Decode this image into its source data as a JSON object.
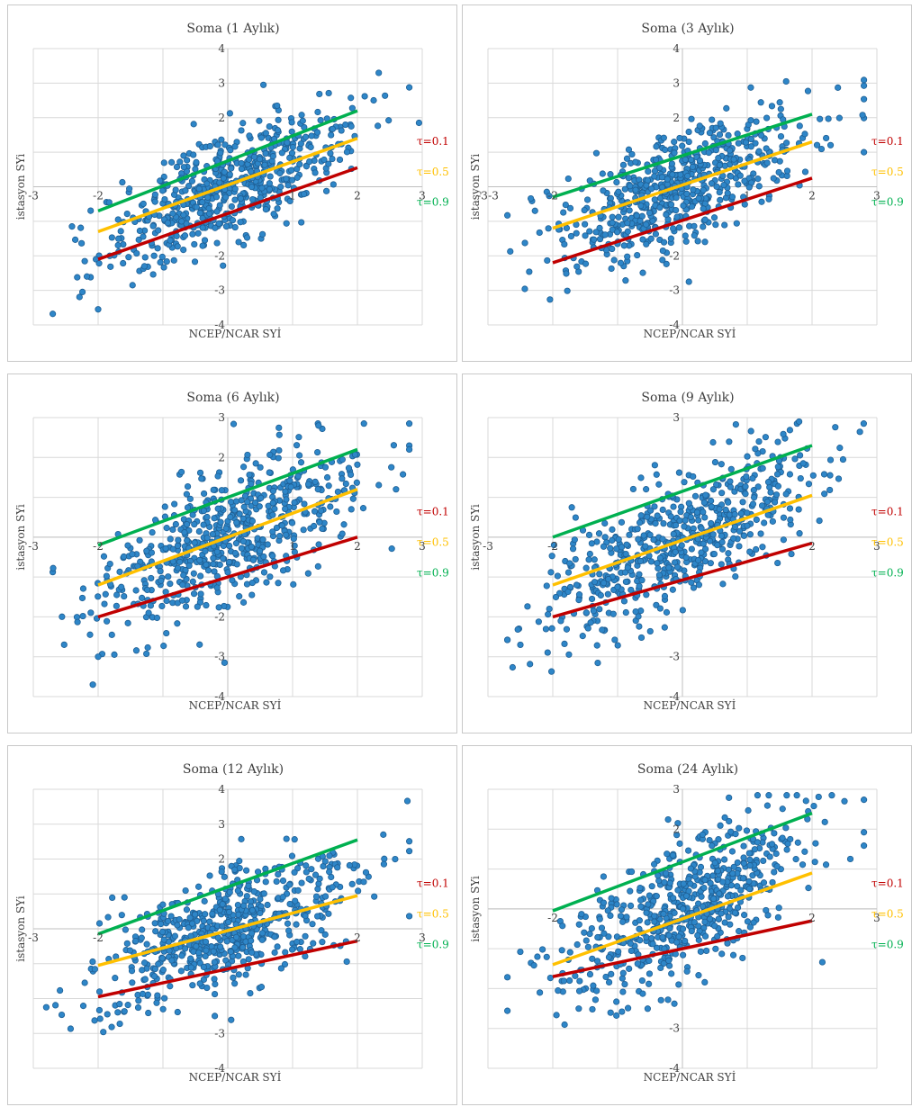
{
  "colors": {
    "points": "#2e86c8",
    "point_edge": "#1f5f94",
    "tau_0_1": "#c00000",
    "tau_0_5": "#ffc000",
    "tau_0_9": "#00b050",
    "grid": "#d9d9d9",
    "axis": "#bfbfbf",
    "text": "#404040"
  },
  "chart_data": [
    {
      "type": "scatter",
      "title": "Soma (1 Aylık)",
      "xlabel": "NCEP/NCAR SYİ",
      "ylabel": "istasyon SYi",
      "xlim": [
        -3,
        3
      ],
      "ylim": [
        -4,
        4
      ],
      "x_ticks": [
        "-3",
        "-2",
        "1",
        "2",
        "3"
      ],
      "y_ticks": [
        "4",
        "3",
        "2",
        "-2",
        "-3",
        "-4"
      ],
      "point_count": 600,
      "x_spread": 0.95,
      "slope": 0.85,
      "noise": 0.75,
      "extra_points": [
        {
          "x": 2.95,
          "y": 1.85
        },
        {
          "x": -2.0,
          "y": -3.55
        },
        {
          "x": 0.55,
          "y": 2.95
        }
      ],
      "lines": [
        {
          "name": "τ=0.1",
          "x": [
            -2,
            2
          ],
          "y": [
            -2.1,
            0.55
          ]
        },
        {
          "name": "τ=0.5",
          "x": [
            -2,
            2
          ],
          "y": [
            -1.3,
            1.4
          ]
        },
        {
          "name": "τ=0.9",
          "x": [
            -2,
            2
          ],
          "y": [
            -0.7,
            2.2
          ]
        }
      ]
    },
    {
      "type": "scatter",
      "title": "Soma (3 Aylık)",
      "xlabel": "NCEP/NCAR SYİ",
      "ylabel": "istasyon SYi",
      "xlim": [
        -3,
        3
      ],
      "ylim": [
        -4,
        4
      ],
      "x_ticks": [
        "-3",
        "-3",
        "-2",
        "1",
        "2",
        "3"
      ],
      "y_ticks": [
        "4",
        "3",
        "2",
        "-2",
        "-3",
        "-4"
      ],
      "point_count": 600,
      "x_spread": 1.0,
      "slope": 0.72,
      "noise": 0.8,
      "extra_points": [
        {
          "x": 1.6,
          "y": 3.05
        },
        {
          "x": 0.1,
          "y": -2.75
        }
      ],
      "lines": [
        {
          "name": "τ=0.1",
          "x": [
            -2,
            2
          ],
          "y": [
            -2.2,
            0.25
          ]
        },
        {
          "name": "τ=0.5",
          "x": [
            -2,
            2
          ],
          "y": [
            -1.2,
            1.3
          ]
        },
        {
          "name": "τ=0.9",
          "x": [
            -2,
            2
          ],
          "y": [
            -0.3,
            2.1
          ]
        }
      ]
    },
    {
      "type": "scatter",
      "title": "Soma (6 Aylık)",
      "xlabel": "NCEP/NCAR SYİ",
      "ylabel": "istasyon SYi",
      "xlim": [
        -3,
        3
      ],
      "ylim": [
        -4,
        3
      ],
      "x_ticks": [
        "-3",
        "-2",
        "1",
        "2",
        "3"
      ],
      "y_ticks": [
        "3",
        "2",
        "-2",
        "-3",
        "-4"
      ],
      "point_count": 600,
      "x_spread": 1.0,
      "slope": 0.75,
      "noise": 0.85,
      "extra_points": [
        {
          "x": -0.05,
          "y": -3.15
        },
        {
          "x": -2.0,
          "y": -3.0
        },
        {
          "x": 1.4,
          "y": 2.8
        }
      ],
      "lines": [
        {
          "name": "τ=0.1",
          "x": [
            -2,
            2
          ],
          "y": [
            -2.0,
            0.0
          ]
        },
        {
          "name": "τ=0.5",
          "x": [
            -2,
            2
          ],
          "y": [
            -1.2,
            1.2
          ]
        },
        {
          "name": "τ=0.9",
          "x": [
            -2,
            2
          ],
          "y": [
            -0.2,
            2.2
          ]
        }
      ]
    },
    {
      "type": "scatter",
      "title": "Soma (9 Aylık)",
      "xlabel": "NCEP/NCAR SYİ",
      "ylabel": "istasyon SYi",
      "xlim": [
        -3,
        3
      ],
      "ylim": [
        -4,
        3
      ],
      "x_ticks": [
        "-3",
        "-2",
        "2",
        "3"
      ],
      "y_ticks": [
        "3",
        "-3",
        "-4"
      ],
      "point_count": 600,
      "x_spread": 1.0,
      "slope": 0.78,
      "noise": 0.8,
      "extra_points": [
        {
          "x": 1.8,
          "y": 2.9
        },
        {
          "x": -2.5,
          "y": -2.7
        }
      ],
      "lines": [
        {
          "name": "τ=0.1",
          "x": [
            -2,
            2
          ],
          "y": [
            -2.0,
            -0.15
          ]
        },
        {
          "name": "τ=0.5",
          "x": [
            -2,
            2
          ],
          "y": [
            -1.2,
            1.05
          ]
        },
        {
          "name": "τ=0.9",
          "x": [
            -2,
            2
          ],
          "y": [
            0.0,
            2.3
          ]
        }
      ]
    },
    {
      "type": "scatter",
      "title": "Soma (12 Aylık)",
      "xlabel": "NCEP/NCAR SYİ",
      "ylabel": "istasyon SYi",
      "xlim": [
        -3,
        3
      ],
      "ylim": [
        -4,
        4
      ],
      "x_ticks": [
        "-3",
        "-2",
        "2",
        "3"
      ],
      "y_ticks": [
        "4",
        "3",
        "2",
        "-3",
        "-4"
      ],
      "point_count": 600,
      "x_spread": 1.0,
      "slope": 0.72,
      "noise": 0.85,
      "extra_points": [
        {
          "x": -2.8,
          "y": -2.25
        },
        {
          "x": -0.2,
          "y": -2.5
        },
        {
          "x": 2.4,
          "y": 2.7
        }
      ],
      "lines": [
        {
          "name": "τ=0.1",
          "x": [
            -2,
            2
          ],
          "y": [
            -1.95,
            -0.35
          ]
        },
        {
          "name": "τ=0.5",
          "x": [
            -2,
            2
          ],
          "y": [
            -1.05,
            0.95
          ]
        },
        {
          "name": "τ=0.9",
          "x": [
            -2,
            2
          ],
          "y": [
            -0.15,
            2.55
          ]
        }
      ]
    },
    {
      "type": "scatter",
      "title": "Soma (24 Aylık)",
      "xlabel": "NCEP/NCAR SYİ",
      "ylabel": "istasyon SYi",
      "xlim": [
        -3,
        3
      ],
      "ylim": [
        -4,
        3
      ],
      "x_ticks": [
        "-2",
        "2",
        "3"
      ],
      "y_ticks": [
        "3",
        "2",
        "-3",
        "-4"
      ],
      "point_count": 600,
      "x_spread": 0.95,
      "slope": 0.8,
      "noise": 0.85,
      "extra_points": [
        {
          "x": 2.5,
          "y": 2.7
        },
        {
          "x": -2.2,
          "y": -2.1
        }
      ],
      "lines": [
        {
          "name": "τ=0.1",
          "x": [
            -2,
            2
          ],
          "y": [
            -1.7,
            -0.3
          ]
        },
        {
          "name": "τ=0.5",
          "x": [
            -2,
            2
          ],
          "y": [
            -1.4,
            0.9
          ]
        },
        {
          "name": "τ=0.9",
          "x": [
            -2,
            2
          ],
          "y": [
            -0.05,
            2.4
          ]
        }
      ]
    }
  ]
}
